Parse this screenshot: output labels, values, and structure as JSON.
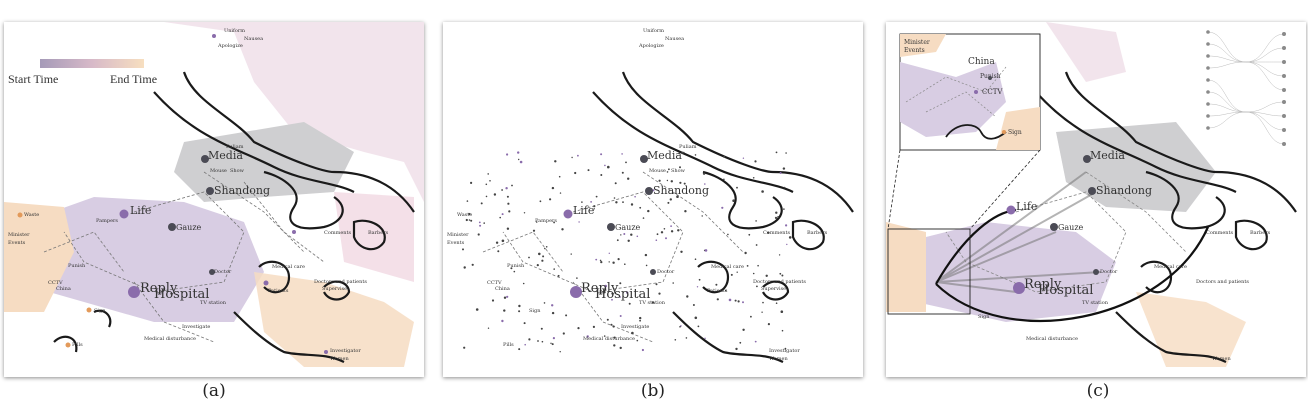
{
  "captions": [
    "(a)",
    "(b)",
    "(c)"
  ],
  "legend": {
    "start_label": "Start Time",
    "end_label": "End Time",
    "start_color": "#a59ab8",
    "end_color": "#f7dfc0"
  },
  "labels": {
    "uniform": "Uniform",
    "nausea": "Nausea",
    "apologize": "Apologize",
    "media": "Media",
    "puliam": "Puliam",
    "mouse": "Mouse",
    "show": "Show",
    "shandong": "Shandong",
    "life": "Life",
    "gauze": "Gauze",
    "waste": "Waste",
    "pampers": "Pampers",
    "minister": "Minister",
    "events": "Events",
    "punish": "Punish",
    "cctv": "CCTV",
    "china": "China",
    "reply": "Reply",
    "hospital": "Hospital",
    "doctor": "Doctor",
    "tv_station": "TV station",
    "sign": "Sign",
    "investigate": "Investigate",
    "medical_disturbance": "Medical disturbance",
    "medical_care": "Medical care",
    "doctors_patients": "Doctors and patients",
    "supervise": "Supervise",
    "patients": "Patients",
    "comments": "Comments",
    "barbers": "Barbers",
    "investigator": "Investigator",
    "women": "Women",
    "pills": "Pills"
  },
  "inset_labels": {
    "china": "China",
    "punish": "Punish",
    "cctv": "CCTV",
    "minister": "Minister",
    "events": "Events",
    "sign": "Sign"
  },
  "colors": {
    "region_gray": "#cfcfd1",
    "region_purple": "#d8cde3",
    "region_peach": "#f6dcc2",
    "region_pink": "#efd3de",
    "node_dark": "#4b4b55",
    "node_purple": "#8a6cab",
    "node_orange": "#e39a5a",
    "border": "#1a1a1a"
  }
}
